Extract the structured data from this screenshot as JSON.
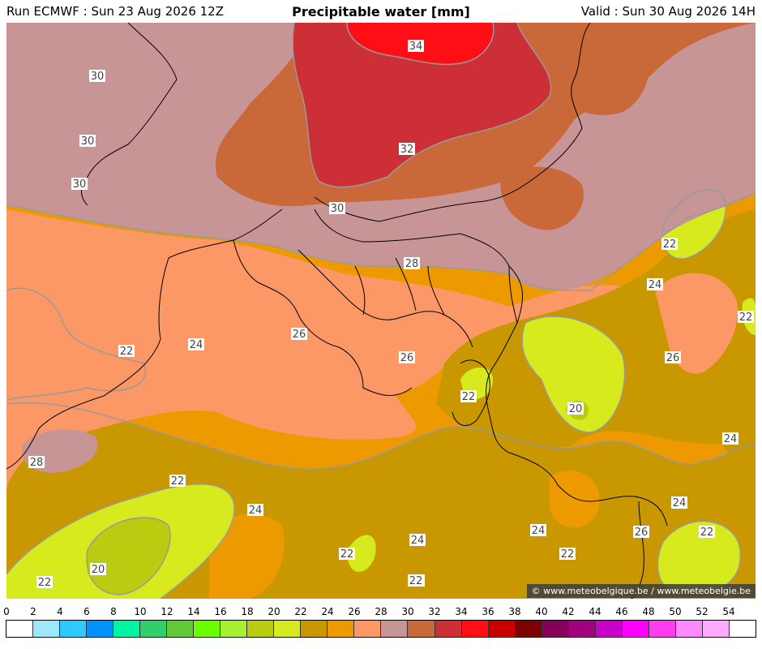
{
  "header": {
    "run": "Run ECMWF : Sun 23 Aug 2026 12Z",
    "title": "Precipitable water [mm]",
    "valid": "Valid : Sun 30 Aug 2026 14H"
  },
  "credit": "© www.meteobelgique.be / www.meteobelgie.be",
  "colors": {
    "c20": "#b9cc10",
    "c22": "#d6ea1e",
    "c24": "#c99700",
    "c26": "#ec9a00",
    "c28": "#fb9865",
    "c30": "#c89596",
    "c32": "#c96838",
    "c34": "#cd2f37",
    "c36": "#ff0e16",
    "border": "#000000",
    "contour": "#9a9a9a"
  },
  "contour_labels": [
    "30",
    "30",
    "30",
    "34",
    "32",
    "30",
    "28",
    "26",
    "26",
    "22",
    "24",
    "22",
    "24",
    "22",
    "22",
    "20",
    "24",
    "26",
    "22",
    "28",
    "22",
    "24",
    "24",
    "22",
    "24",
    "22",
    "20",
    "22",
    "22",
    "24",
    "26",
    "22"
  ],
  "legend": {
    "ticks": [
      "0",
      "2",
      "4",
      "6",
      "8",
      "10",
      "12",
      "14",
      "16",
      "18",
      "20",
      "22",
      "24",
      "26",
      "28",
      "30",
      "32",
      "34",
      "36",
      "38",
      "40",
      "42",
      "44",
      "46",
      "48",
      "50",
      "52",
      "54"
    ],
    "colors": [
      "#ffffff",
      "#9de8fa",
      "#2fc8ff",
      "#0092ff",
      "#00f4a4",
      "#2fcf6a",
      "#61c938",
      "#6cff00",
      "#a6f131",
      "#b9cc10",
      "#d6ea1e",
      "#c99700",
      "#ec9a00",
      "#fb9865",
      "#c89596",
      "#c96838",
      "#cd2f37",
      "#ff0e16",
      "#c80000",
      "#7e0000",
      "#86005a",
      "#a2007e",
      "#c800c8",
      "#ff00ff",
      "#ff3cf0",
      "#ff88ff",
      "#ffaaff",
      "#ffffff"
    ]
  }
}
